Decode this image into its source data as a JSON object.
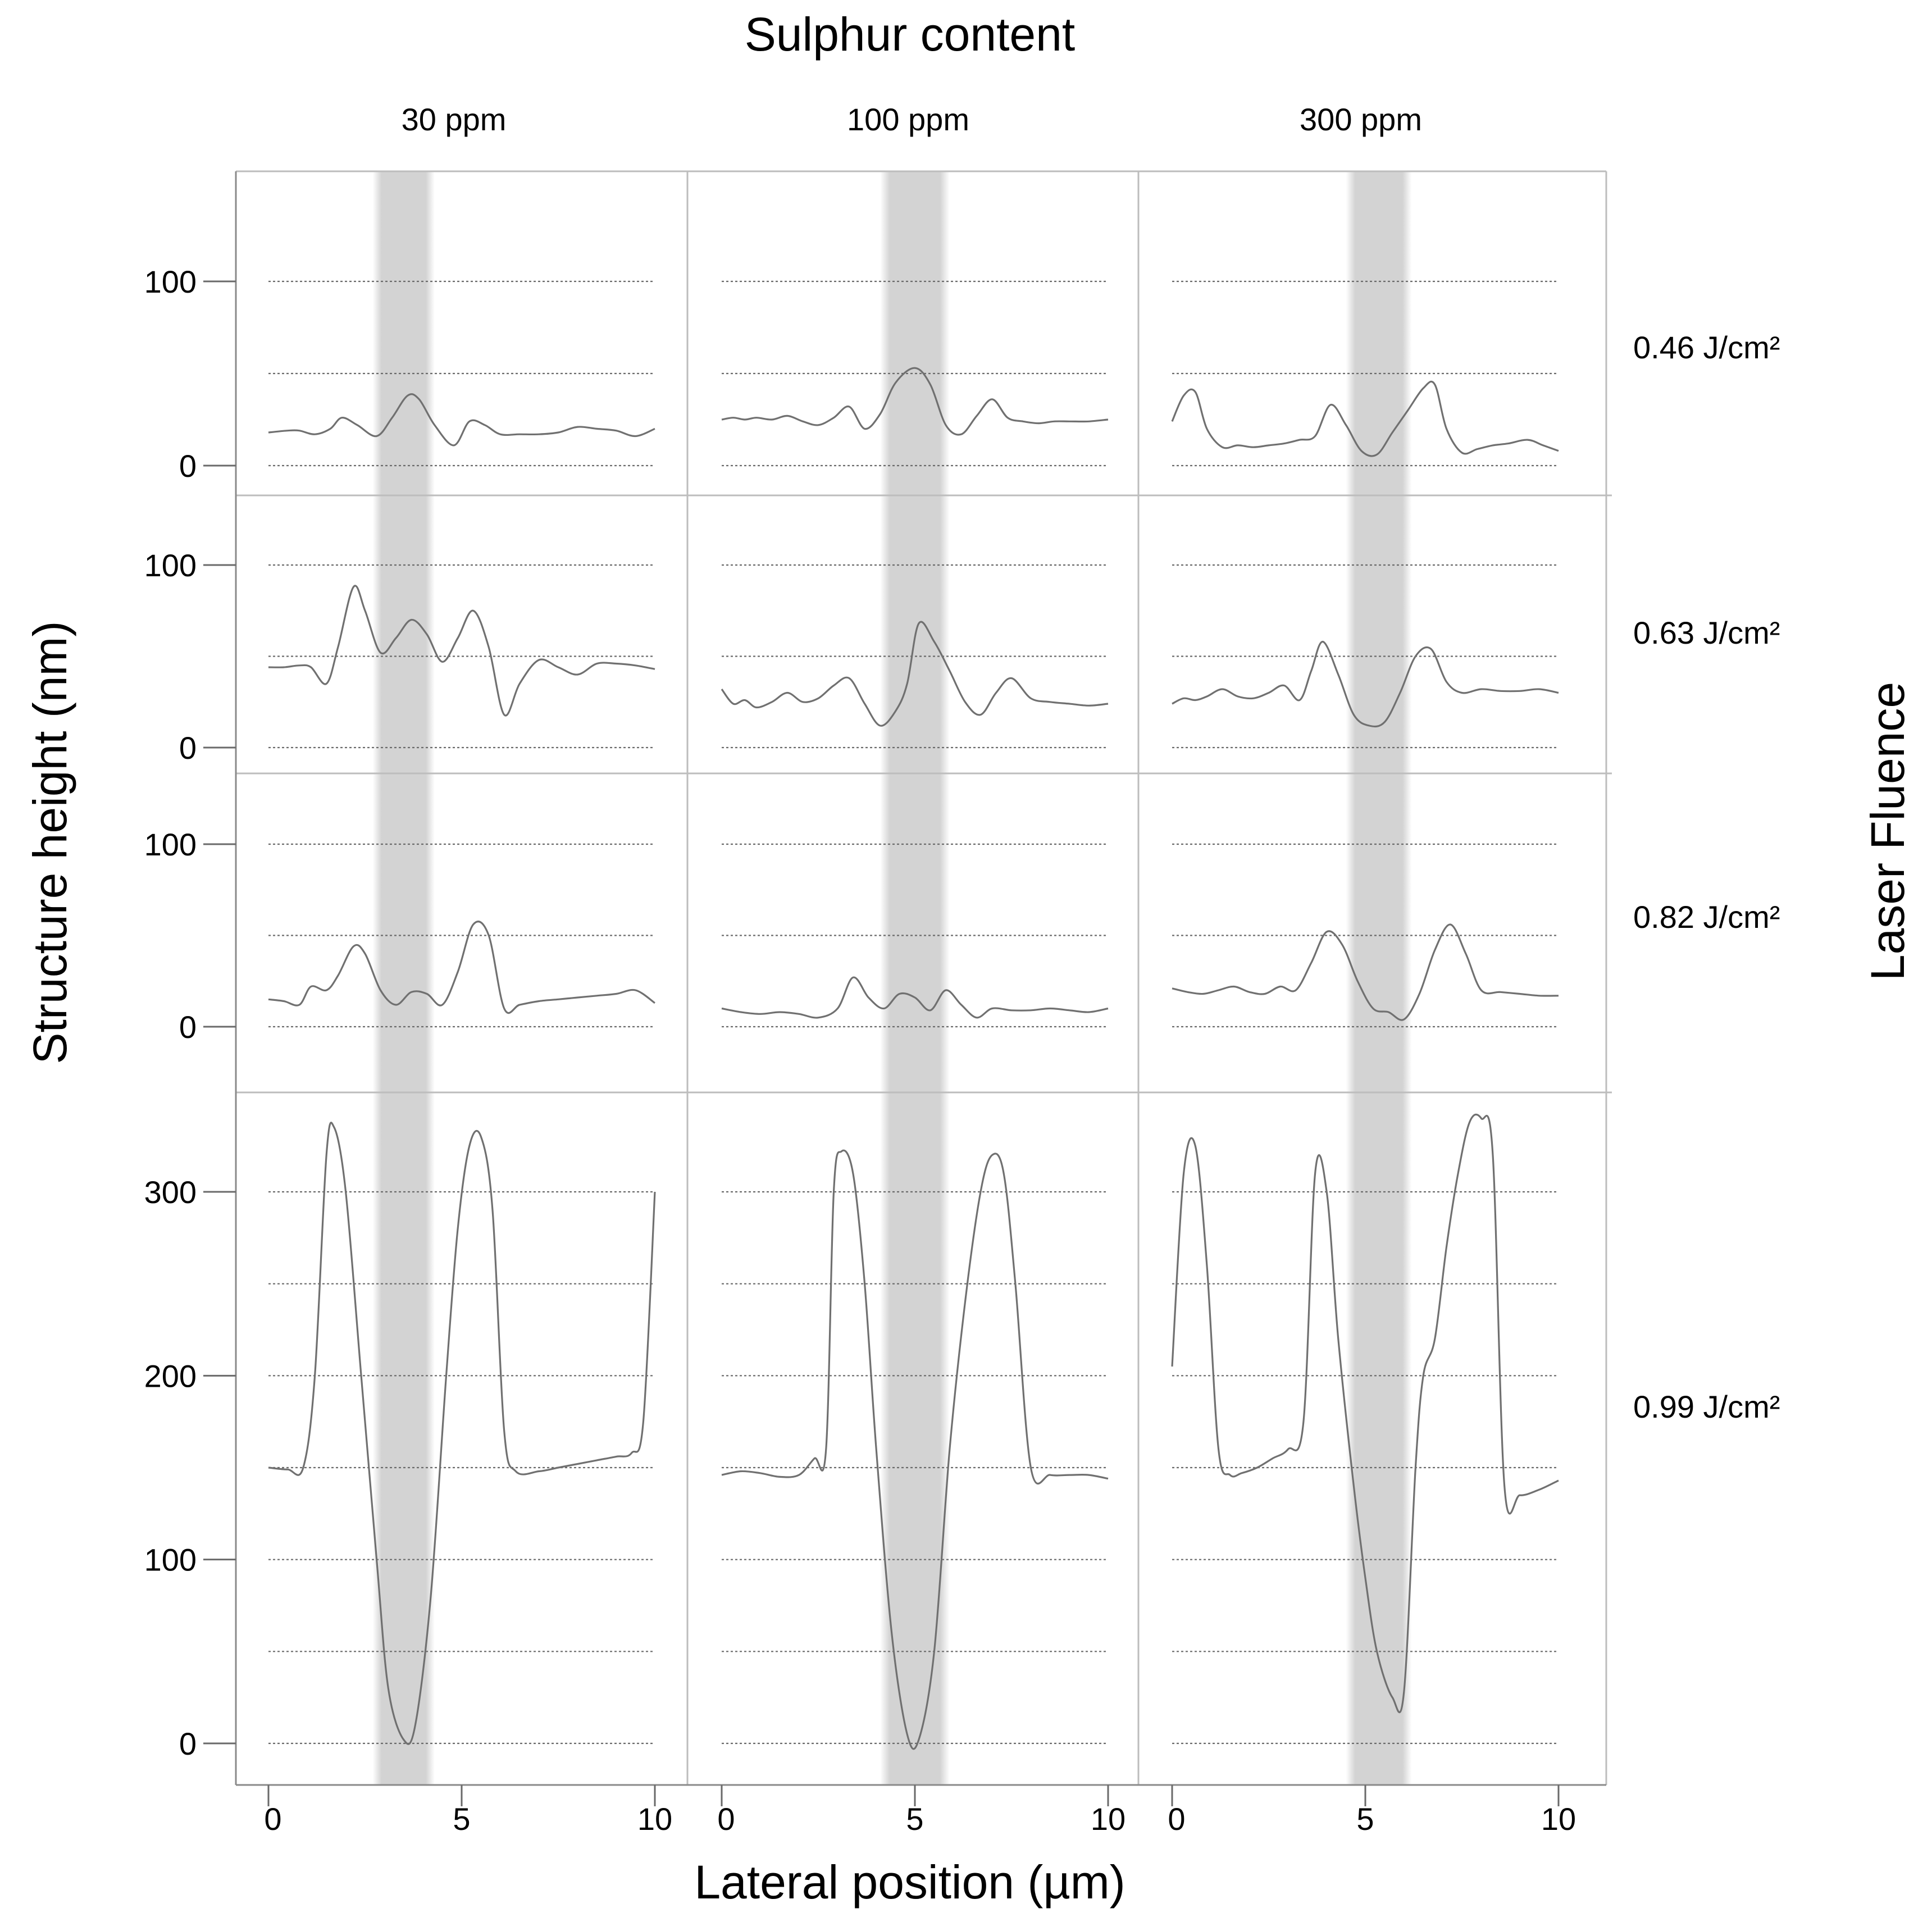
{
  "figure": {
    "col_axis_title": "Sulphur content",
    "row_axis_title": "Laser Fluence",
    "xlabel": "Lateral position (µm)",
    "ylabel": "Structure height (nm)"
  },
  "columns": [
    "30 ppm",
    "100 ppm",
    "300 ppm"
  ],
  "rows": [
    "0.46 J/cm²",
    "0.63 J/cm²",
    "0.82 J/cm²",
    "0.99 J/cm²"
  ],
  "colors": {
    "line": "#707070",
    "band": "#d3d3d3",
    "grid": "#6a6a6a",
    "frame": "#bdbdbd"
  },
  "chart_data": {
    "type": "line",
    "grid": "dotted horizontal",
    "xlim": [
      0,
      10
    ],
    "xticks": [
      0,
      5,
      10
    ],
    "shaded_bands": [
      [
        2.7,
        4.3
      ],
      [
        4.1,
        5.9
      ],
      [
        4.5,
        6.2
      ]
    ],
    "panel_rows": [
      {
        "fluence": "0.46 J/cm²",
        "ylim": [
          0,
          100
        ],
        "yticks": [
          0,
          100
        ],
        "gridlines": [
          0,
          50,
          100
        ],
        "series": [
          {
            "x": [
              0,
              0.5,
              0.8,
              1.2,
              1.6,
              1.9,
              2.3,
              2.8,
              3.2,
              3.6,
              3.9,
              4.3,
              4.8,
              5.2,
              5.6,
              6,
              6.5,
              7,
              7.5,
              8,
              8.5,
              9,
              9.5,
              10
            ],
            "y": [
              18,
              19,
              19,
              17,
              20,
              26,
              22,
              16,
              26,
              38,
              36,
              22,
              11,
              24,
              22,
              17,
              17,
              17,
              18,
              21,
              20,
              19,
              16,
              20
            ]
          },
          {
            "x": [
              0,
              0.3,
              0.6,
              0.9,
              1.3,
              1.7,
              2.1,
              2.5,
              2.9,
              3.3,
              3.7,
              4.1,
              4.5,
              5,
              5.4,
              5.8,
              6.2,
              6.6,
              7,
              7.4,
              7.8,
              8.2,
              8.6,
              9,
              9.5,
              10
            ],
            "y": [
              25,
              26,
              25,
              26,
              25,
              27,
              24,
              22,
              26,
              32,
              20,
              28,
              45,
              53,
              44,
              22,
              17,
              27,
              36,
              26,
              24,
              23,
              24,
              24,
              24,
              25
            ]
          },
          {
            "x": [
              0,
              0.3,
              0.6,
              0.9,
              1.3,
              1.7,
              2.1,
              2.5,
              2.9,
              3.3,
              3.7,
              4.1,
              4.5,
              4.9,
              5.3,
              5.7,
              6.1,
              6.5,
              6.8,
              7.1,
              7.5,
              7.9,
              8.3,
              8.7,
              9.2,
              9.6,
              10
            ],
            "y": [
              24,
              38,
              40,
              20,
              10,
              11,
              10,
              11,
              12,
              14,
              16,
              33,
              22,
              8,
              6,
              18,
              30,
              42,
              44,
              20,
              7,
              9,
              11,
              12,
              14,
              11,
              8
            ]
          }
        ]
      },
      {
        "fluence": "0.63 J/cm²",
        "ylim": [
          0,
          100
        ],
        "yticks": [
          0,
          100
        ],
        "gridlines": [
          0,
          50,
          100
        ],
        "series": [
          {
            "x": [
              0,
              0.4,
              0.8,
              1.1,
              1.5,
              1.8,
              2.2,
              2.5,
              2.9,
              3.3,
              3.7,
              4.1,
              4.5,
              4.9,
              5.3,
              5.7,
              6.1,
              6.5,
              7,
              7.5,
              8,
              8.5,
              9,
              9.5,
              10
            ],
            "y": [
              44,
              44,
              45,
              44,
              35,
              55,
              88,
              75,
              52,
              60,
              70,
              62,
              47,
              60,
              75,
              55,
              18,
              35,
              48,
              44,
              40,
              46,
              46,
              45,
              43
            ]
          },
          {
            "x": [
              0,
              0.3,
              0.6,
              0.9,
              1.3,
              1.7,
              2.1,
              2.5,
              2.9,
              3.3,
              3.7,
              4.1,
              4.5,
              4.8,
              5.1,
              5.5,
              5.9,
              6.3,
              6.7,
              7.1,
              7.5,
              8,
              8.5,
              9,
              9.5,
              10
            ],
            "y": [
              32,
              24,
              26,
              22,
              25,
              30,
              25,
              27,
              34,
              38,
              24,
              12,
              20,
              35,
              68,
              58,
              42,
              25,
              18,
              30,
              38,
              27,
              25,
              24,
              23,
              24
            ]
          },
          {
            "x": [
              0,
              0.3,
              0.6,
              0.9,
              1.3,
              1.7,
              2.1,
              2.5,
              2.9,
              3.3,
              3.6,
              3.9,
              4.3,
              4.7,
              5.1,
              5.5,
              5.9,
              6.3,
              6.7,
              7.1,
              7.5,
              8,
              8.5,
              9,
              9.5,
              10
            ],
            "y": [
              24,
              27,
              26,
              28,
              32,
              28,
              27,
              30,
              34,
              26,
              42,
              58,
              40,
              18,
              12,
              14,
              30,
              50,
              54,
              36,
              30,
              32,
              31,
              31,
              32,
              30
            ]
          }
        ]
      },
      {
        "fluence": "0.82 J/cm²",
        "ylim": [
          0,
          100
        ],
        "yticks": [
          0,
          100
        ],
        "gridlines": [
          0,
          50,
          100
        ],
        "series": [
          {
            "x": [
              0,
              0.4,
              0.8,
              1.1,
              1.5,
              1.8,
              2.2,
              2.5,
              2.9,
              3.3,
              3.7,
              4.1,
              4.5,
              4.9,
              5.3,
              5.7,
              6.1,
              6.5,
              7,
              7.5,
              8,
              8.5,
              9,
              9.5,
              10
            ],
            "y": [
              15,
              14,
              12,
              22,
              20,
              28,
              44,
              40,
              20,
              12,
              19,
              18,
              12,
              30,
              56,
              50,
              10,
              12,
              14,
              15,
              16,
              17,
              18,
              20,
              13
            ]
          },
          {
            "x": [
              0,
              0.5,
              1,
              1.5,
              2,
              2.5,
              3,
              3.4,
              3.8,
              4.2,
              4.6,
              5,
              5.4,
              5.8,
              6.2,
              6.6,
              7,
              7.5,
              8,
              8.5,
              9,
              9.5,
              10
            ],
            "y": [
              10,
              8,
              7,
              8,
              7,
              5,
              10,
              27,
              16,
              10,
              18,
              16,
              9,
              20,
              12,
              5,
              10,
              9,
              9,
              10,
              9,
              8,
              10
            ]
          },
          {
            "x": [
              0,
              0.4,
              0.8,
              1.2,
              1.6,
              2,
              2.4,
              2.8,
              3.2,
              3.6,
              4,
              4.4,
              4.8,
              5.2,
              5.6,
              6,
              6.4,
              6.8,
              7.2,
              7.6,
              8,
              8.5,
              9,
              9.5,
              10
            ],
            "y": [
              21,
              19,
              18,
              20,
              22,
              19,
              18,
              22,
              20,
              35,
              52,
              45,
              25,
              10,
              8,
              4,
              18,
              42,
              56,
              40,
              20,
              19,
              18,
              17,
              17
            ]
          }
        ]
      },
      {
        "fluence": "0.99 J/cm²",
        "ylim": [
          0,
          300
        ],
        "yticks": [
          0,
          100,
          200,
          300
        ],
        "gridlines": [
          0,
          50,
          100,
          150,
          200,
          250,
          300
        ],
        "series": [
          {
            "x": [
              0,
              0.5,
              0.9,
              1.2,
              1.5,
              1.7,
              2,
              2.4,
              2.8,
              3.1,
              3.5,
              3.8,
              4.2,
              4.6,
              4.9,
              5.2,
              5.5,
              5.8,
              6.1,
              6.4,
              7,
              7.5,
              8,
              8.5,
              9,
              9.4,
              9.7,
              10
            ],
            "y": [
              150,
              149,
              150,
              200,
              320,
              335,
              300,
              200,
              100,
              30,
              2,
              10,
              80,
              200,
              280,
              325,
              330,
              290,
              170,
              148,
              148,
              150,
              152,
              154,
              156,
              158,
              175,
              300
            ]
          },
          {
            "x": [
              0,
              0.5,
              1,
              1.5,
              2,
              2.4,
              2.7,
              2.9,
              3.1,
              3.4,
              3.7,
              4,
              4.4,
              4.8,
              5.1,
              5.5,
              5.9,
              6.3,
              6.7,
              7,
              7.3,
              7.6,
              8,
              8.5,
              9,
              9.5,
              10
            ],
            "y": [
              146,
              148,
              147,
              145,
              146,
              155,
              160,
              300,
              322,
              310,
              250,
              160,
              60,
              5,
              2,
              50,
              160,
              240,
              300,
              320,
              310,
              250,
              150,
              146,
              146,
              146,
              144
            ]
          },
          {
            "x": [
              0,
              0.3,
              0.6,
              0.9,
              1.2,
              1.5,
              1.8,
              2.2,
              2.6,
              3,
              3.4,
              3.7,
              4,
              4.3,
              4.7,
              5,
              5.3,
              5.7,
              6,
              6.3,
              6.5,
              6.8,
              7.1,
              7.4,
              7.7,
              8,
              8.3,
              8.6,
              9,
              9.5,
              10
            ],
            "y": [
              205,
              310,
              325,
              260,
              160,
              146,
              147,
              150,
              155,
              160,
              175,
              310,
              300,
              220,
              140,
              90,
              50,
              25,
              28,
              150,
              200,
              220,
              270,
              310,
              338,
              340,
              320,
              140,
              135,
              138,
              143
            ]
          }
        ]
      }
    ]
  }
}
